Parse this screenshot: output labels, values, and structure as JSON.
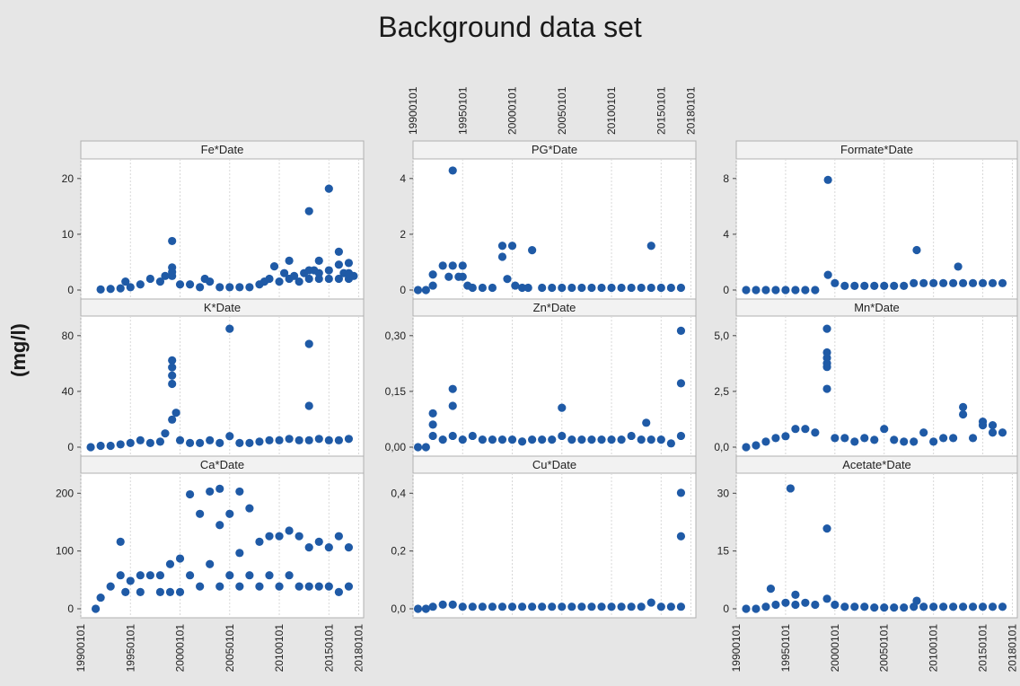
{
  "title": "Background data set",
  "ylabel": "(mg/l)",
  "colors": {
    "marker": "#1f5aa6",
    "background": "#e6e6e6",
    "panel": "#ffffff",
    "grid": "#d8d8d8",
    "header": "#f2f2f2"
  },
  "x_tick_labels": [
    "19900101",
    "19950101",
    "20000101",
    "20050101",
    "20100101",
    "20150101",
    "20180101"
  ],
  "chart_data": {
    "type": "scatter",
    "title": "Background data set",
    "ylabel": "(mg/l)",
    "x_axis": {
      "type": "date",
      "range": [
        "1990-01-01",
        "2018-06-01"
      ],
      "grid": "vertical"
    },
    "panels": [
      {
        "name": "Fe*Date",
        "yticks": [
          "0",
          "10",
          "20"
        ],
        "ylim": [
          0,
          22
        ],
        "x": [
          1992,
          1993,
          1994,
          1994.5,
          1995,
          1996,
          1997,
          1998,
          1998.5,
          1999.2,
          1999.2,
          1999.2,
          1999.2,
          2000,
          2001,
          2002,
          2002.5,
          2003,
          2004,
          2005,
          2006,
          2007,
          2008,
          2008.5,
          2009,
          2009.5,
          2010,
          2010.5,
          2011,
          2011,
          2011.5,
          2012,
          2012.5,
          2013,
          2013,
          2013,
          2013.5,
          2014,
          2014,
          2014,
          2015,
          2015,
          2015,
          2016,
          2016,
          2016,
          2016.5,
          2017,
          2017,
          2017,
          2017.5
        ],
        "y": [
          0.1,
          0.2,
          0.3,
          1.5,
          0.5,
          1,
          2,
          1.5,
          2.5,
          2.5,
          3.2,
          4,
          8.7,
          1,
          1,
          0.5,
          2,
          1.5,
          0.5,
          0.5,
          0.5,
          0.5,
          1,
          1.5,
          2,
          4.2,
          1.5,
          3,
          5.2,
          2,
          2.5,
          1.5,
          3,
          3.5,
          2,
          14,
          3.5,
          5.2,
          2,
          3,
          3.5,
          18,
          2,
          4.5,
          6.8,
          2,
          3,
          2,
          4.8,
          3,
          2.5
        ]
      },
      {
        "name": "PG*Date",
        "yticks": [
          "0",
          "2",
          "4"
        ],
        "ylim": [
          0,
          5.6
        ],
        "x": [
          1990.5,
          1991.3,
          1992,
          1992,
          1993,
          1993.6,
          1994,
          1994,
          1994.6,
          1995,
          1995,
          1995.5,
          1996,
          1997,
          1998,
          1999,
          1999,
          1999.5,
          2000,
          2000.3,
          2001,
          2001.6,
          2002,
          2003,
          2004,
          2005,
          2006,
          2007,
          2008,
          2009,
          2010,
          2011,
          2012,
          2013,
          2014,
          2014,
          2015,
          2016,
          2017
        ],
        "y": [
          0,
          0,
          0.2,
          0.7,
          1.1,
          0.6,
          5.4,
          1.1,
          0.6,
          1.1,
          0.6,
          0.2,
          0.1,
          0.1,
          0.1,
          1.5,
          2,
          0.5,
          2,
          0.2,
          0.1,
          0.1,
          1.8,
          0.1,
          0.1,
          0.1,
          0.1,
          0.1,
          0.1,
          0.1,
          0.1,
          0.1,
          0.1,
          0.1,
          2,
          0.1,
          0.1,
          0.1,
          0.1
        ]
      },
      {
        "name": "Formate*Date",
        "yticks": [
          "0",
          "4",
          "8"
        ],
        "ylim": [
          0,
          9
        ],
        "x": [
          1991,
          1992,
          1993,
          1994,
          1995,
          1996,
          1997,
          1998,
          1999.3,
          1999.3,
          2000,
          2001,
          2002,
          2003,
          2004,
          2005,
          2006,
          2007,
          2008,
          2008.3,
          2009,
          2010,
          2011,
          2012,
          2012.5,
          2013,
          2014,
          2015,
          2016,
          2017
        ],
        "y": [
          0,
          0,
          0,
          0,
          0,
          0,
          0,
          0,
          1.1,
          8,
          0.5,
          0.3,
          0.3,
          0.3,
          0.3,
          0.3,
          0.3,
          0.3,
          0.5,
          2.9,
          0.5,
          0.5,
          0.5,
          0.5,
          1.7,
          0.5,
          0.5,
          0.5,
          0.5,
          0.5
        ]
      },
      {
        "name": "K*Date",
        "yticks": [
          "0",
          "40",
          "80"
        ],
        "ylim": [
          0,
          90
        ],
        "x": [
          1991,
          1992,
          1993,
          1994,
          1995,
          1996,
          1997,
          1998,
          1998.5,
          1999.2,
          1999.2,
          1999.2,
          1999.2,
          1999.2,
          1999.6,
          2000,
          2001,
          2002,
          2003,
          2004,
          2005,
          2005,
          2006,
          2007,
          2008,
          2009,
          2010,
          2011,
          2012,
          2013,
          2013,
          2013,
          2014,
          2015,
          2016,
          2017
        ],
        "y": [
          0,
          1,
          1,
          2,
          3,
          5,
          3,
          4,
          10,
          20,
          46,
          52,
          58,
          63,
          25,
          5,
          3,
          3,
          5,
          3,
          86,
          8,
          3,
          3,
          4,
          5,
          5,
          6,
          5,
          75,
          30,
          5,
          6,
          5,
          5,
          6
        ]
      },
      {
        "name": "Zn*Date",
        "yticks": [
          "0,00",
          "0,15",
          "0,30"
        ],
        "ylim": [
          0,
          0.33
        ],
        "x": [
          1990.5,
          1991.3,
          1992,
          1992,
          1992,
          1993,
          1994,
          1994,
          1994,
          1995,
          1996,
          1997,
          1998,
          1999,
          2000,
          2001,
          2002,
          2003,
          2004,
          2005,
          2005,
          2006,
          2007,
          2008,
          2009,
          2010,
          2011,
          2012,
          2013,
          2013.5,
          2014,
          2015,
          2016,
          2017,
          2017,
          2017
        ],
        "y": [
          0,
          0,
          0.03,
          0.06,
          0.09,
          0.02,
          0.03,
          0.11,
          0.155,
          0.02,
          0.03,
          0.02,
          0.02,
          0.02,
          0.02,
          0.015,
          0.02,
          0.02,
          0.02,
          0.03,
          0.105,
          0.02,
          0.02,
          0.02,
          0.02,
          0.02,
          0.02,
          0.03,
          0.02,
          0.065,
          0.02,
          0.02,
          0.01,
          0.17,
          0.31,
          0.03
        ]
      },
      {
        "name": "Mn*Date",
        "yticks": [
          "0,0",
          "2,5",
          "5,0"
        ],
        "ylim": [
          0,
          6.8
        ],
        "x": [
          1991,
          1992,
          1993,
          1994,
          1995,
          1996,
          1997,
          1998,
          1999.2,
          1999.2,
          1999.2,
          1999.2,
          1999.2,
          1999.2,
          2000,
          2001,
          2002,
          2003,
          2004,
          2005,
          2006,
          2007,
          2008,
          2009,
          2010,
          2011,
          2012,
          2013,
          2013,
          2014,
          2015,
          2015,
          2016,
          2016,
          2017
        ],
        "y": [
          0,
          0.1,
          0.3,
          0.5,
          0.6,
          1,
          1,
          0.8,
          3.2,
          4.4,
          4.6,
          4.9,
          5.2,
          6.5,
          0.5,
          0.5,
          0.3,
          0.5,
          0.4,
          1,
          0.4,
          0.3,
          0.3,
          0.8,
          0.3,
          0.5,
          0.5,
          2.2,
          1.8,
          0.5,
          1.4,
          1.2,
          1.2,
          0.8,
          0.8
        ]
      },
      {
        "name": "Ca*Date",
        "yticks": [
          "0",
          "100",
          "200"
        ],
        "ylim": [
          0,
          230
        ],
        "x": [
          1991.5,
          1992,
          1993,
          1994,
          1994,
          1994.5,
          1995,
          1996,
          1996,
          1997,
          1998,
          1998,
          1999,
          1999,
          2000,
          2000,
          2001,
          2001,
          2002,
          2002,
          2003,
          2003,
          2004,
          2004,
          2004,
          2005,
          2005,
          2006,
          2006,
          2006,
          2007,
          2007,
          2008,
          2008,
          2009,
          2009,
          2010,
          2010,
          2011,
          2011,
          2012,
          2012,
          2013,
          2013,
          2014,
          2014,
          2015,
          2015,
          2016,
          2016,
          2017,
          2017
        ],
        "y": [
          0,
          20,
          40,
          60,
          120,
          30,
          50,
          60,
          30,
          60,
          60,
          30,
          80,
          30,
          90,
          30,
          205,
          60,
          170,
          40,
          210,
          80,
          215,
          150,
          40,
          170,
          60,
          210,
          100,
          40,
          180,
          60,
          120,
          40,
          130,
          60,
          130,
          40,
          140,
          60,
          130,
          40,
          110,
          40,
          120,
          40,
          110,
          40,
          130,
          30,
          110,
          40
        ]
      },
      {
        "name": "Cu*Date",
        "yticks": [
          "0,0",
          "0,2",
          "0,4"
        ],
        "ylim": [
          0,
          0.62
        ],
        "x": [
          1990.5,
          1991.3,
          1992,
          1993,
          1994,
          1995,
          1996,
          1997,
          1998,
          1999,
          2000,
          2001,
          2002,
          2003,
          2004,
          2005,
          2006,
          2007,
          2008,
          2009,
          2010,
          2011,
          2012,
          2013,
          2014,
          2015,
          2016,
          2017,
          2017,
          2017
        ],
        "y": [
          0,
          0,
          0.01,
          0.02,
          0.02,
          0.01,
          0.01,
          0.01,
          0.01,
          0.01,
          0.01,
          0.01,
          0.01,
          0.01,
          0.01,
          0.01,
          0.01,
          0.01,
          0.01,
          0.01,
          0.01,
          0.01,
          0.01,
          0.01,
          0.03,
          0.01,
          0.01,
          0.35,
          0.56,
          0.01
        ]
      },
      {
        "name": "Acetate*Date",
        "yticks": [
          "0",
          "15",
          "30"
        ],
        "ylim": [
          0,
          32
        ],
        "x": [
          1991,
          1992,
          1993,
          1993.5,
          1994,
          1995,
          1995.5,
          1996,
          1996,
          1997,
          1998,
          1999.2,
          1999.2,
          2000,
          2001,
          2002,
          2003,
          2004,
          2005,
          2006,
          2007,
          2008,
          2008.3,
          2009,
          2010,
          2011,
          2012,
          2013,
          2014,
          2015,
          2016,
          2017
        ],
        "y": [
          0,
          0,
          0.5,
          5,
          1,
          1.5,
          30,
          3.5,
          1,
          1.5,
          1,
          2.5,
          20,
          1,
          0.5,
          0.5,
          0.5,
          0.3,
          0.3,
          0.3,
          0.3,
          0.5,
          2,
          0.5,
          0.5,
          0.5,
          0.5,
          0.5,
          0.5,
          0.5,
          0.5,
          0.5
        ]
      }
    ]
  }
}
